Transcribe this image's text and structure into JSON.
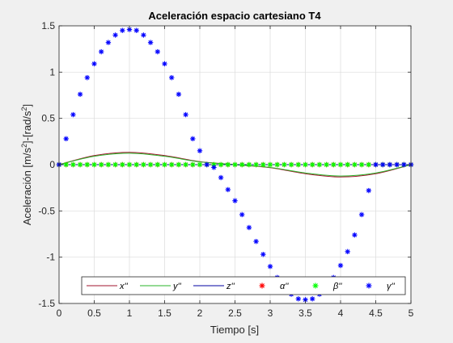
{
  "chart_data": {
    "type": "line",
    "title": "Aceleración espacio cartesiano T4",
    "xlabel": "Tiempo [s]",
    "ylabel_main": "Aceleración [m/s",
    "ylabel_mid": "]-[rad/s",
    "ylabel_end": "]",
    "ylabel_sup": "2",
    "xlim": [
      0,
      5
    ],
    "ylim": [
      -1.5,
      1.5
    ],
    "xticks": [
      0,
      0.5,
      1,
      1.5,
      2,
      2.5,
      3,
      3.5,
      4,
      4.5,
      5
    ],
    "xtick_labels": [
      "0",
      "0.5",
      "1",
      "1.5",
      "2",
      "2.5",
      "3",
      "3.5",
      "4",
      "4.5",
      "5"
    ],
    "yticks": [
      -1.5,
      -1,
      -0.5,
      0,
      0.5,
      1,
      1.5
    ],
    "ytick_labels": [
      "-1.5",
      "-1",
      "-0.5",
      "0",
      "0.5",
      "1",
      "1.5"
    ],
    "grid": true,
    "legend_position": "bottom",
    "series": [
      {
        "name": "x''",
        "style": "line",
        "color": "#a2142f",
        "x": [
          0,
          0.5,
          1,
          1.5,
          2,
          2.5,
          3,
          3.5,
          4,
          4.5,
          5
        ],
        "y": [
          0,
          0.098,
          0.133,
          0.098,
          0.033,
          0,
          -0.033,
          -0.098,
          -0.133,
          -0.098,
          0
        ]
      },
      {
        "name": "y''",
        "style": "line",
        "color": "#2ab52a",
        "x": [
          0,
          0.5,
          1,
          1.5,
          2,
          2.5,
          3,
          3.5,
          4,
          4.5,
          5
        ],
        "y": [
          0,
          0.09,
          0.123,
          0.09,
          0.03,
          0,
          -0.03,
          -0.09,
          -0.123,
          -0.09,
          0
        ]
      },
      {
        "name": "z''",
        "style": "line",
        "color": "#0000a0",
        "x": [
          0,
          5
        ],
        "y": [
          0,
          0
        ]
      },
      {
        "name": "α''",
        "style": "star",
        "color": "#ff0000",
        "x": [
          0,
          0.1,
          0.2,
          0.3,
          0.4,
          0.5,
          0.6,
          0.7,
          0.8,
          0.9,
          1,
          1.1,
          1.2,
          1.3,
          1.4,
          1.5,
          1.6,
          1.7,
          1.8,
          1.9,
          2,
          2.1,
          2.2,
          2.3,
          2.4,
          2.5,
          2.6,
          2.7,
          2.8,
          2.9,
          3,
          3.1,
          3.2,
          3.3,
          3.4,
          3.5,
          3.6,
          3.7,
          3.8,
          3.9,
          4,
          4.1,
          4.2,
          4.3,
          4.4,
          4.5,
          4.6,
          4.7,
          4.8,
          4.9,
          5
        ],
        "y": [
          0,
          0,
          0,
          0,
          0,
          0,
          0,
          0,
          0,
          0,
          0,
          0,
          0,
          0,
          0,
          0,
          0,
          0,
          0,
          0,
          0,
          0,
          0,
          0,
          0,
          0,
          0,
          0,
          0,
          0,
          0,
          0,
          0,
          0,
          0,
          0,
          0,
          0,
          0,
          0,
          0,
          0,
          0,
          0,
          0,
          0,
          0,
          0,
          0,
          0,
          0
        ]
      },
      {
        "name": "β''",
        "style": "star",
        "color": "#00ff00",
        "x": [
          0,
          0.1,
          0.2,
          0.3,
          0.4,
          0.5,
          0.6,
          0.7,
          0.8,
          0.9,
          1,
          1.1,
          1.2,
          1.3,
          1.4,
          1.5,
          1.6,
          1.7,
          1.8,
          1.9,
          2,
          2.1,
          2.2,
          2.3,
          2.4,
          2.5,
          2.6,
          2.7,
          2.8,
          2.9,
          3,
          3.1,
          3.2,
          3.3,
          3.4,
          3.5,
          3.6,
          3.7,
          3.8,
          3.9,
          4,
          4.1,
          4.2,
          4.3,
          4.4,
          4.5,
          4.6,
          4.7,
          4.8,
          4.9,
          5
        ],
        "y": [
          0,
          0,
          0,
          0,
          0,
          0,
          0,
          0,
          0,
          0,
          0,
          0,
          0,
          0,
          0,
          0,
          0,
          0,
          0,
          0,
          0,
          0,
          0,
          0,
          0,
          0,
          0,
          0,
          0,
          0,
          0,
          0,
          0,
          0,
          0,
          0,
          0,
          0,
          0,
          0,
          0,
          0,
          0,
          0,
          0,
          0,
          0,
          0,
          0,
          0,
          0
        ]
      },
      {
        "name": "γ''",
        "style": "star",
        "color": "#0000ff",
        "x": [
          0,
          0.1,
          0.2,
          0.3,
          0.4,
          0.5,
          0.6,
          0.7,
          0.8,
          0.9,
          1,
          1.1,
          1.2,
          1.3,
          1.4,
          1.5,
          1.6,
          1.7,
          1.8,
          1.9,
          2,
          2.1,
          2.2,
          2.3,
          2.4,
          2.5,
          2.6,
          2.7,
          2.8,
          2.9,
          3,
          3.1,
          3.2,
          3.3,
          3.4,
          3.5,
          3.6,
          3.7,
          3.8,
          3.9,
          4,
          4.1,
          4.2,
          4.3,
          4.4,
          4.5,
          4.6,
          4.7,
          4.8,
          4.9,
          5
        ],
        "y": [
          0,
          0.28,
          0.54,
          0.76,
          0.94,
          1.09,
          1.22,
          1.32,
          1.4,
          1.45,
          1.46,
          1.45,
          1.4,
          1.32,
          1.22,
          1.09,
          0.94,
          0.76,
          0.54,
          0.28,
          0.15,
          0.0,
          -0.03,
          -0.14,
          -0.27,
          -0.39,
          -0.54,
          -0.68,
          -0.83,
          -0.97,
          -1.1,
          -1.22,
          -1.32,
          -1.4,
          -1.45,
          -1.46,
          -1.45,
          -1.4,
          -1.32,
          -1.22,
          -1.09,
          -0.94,
          -0.76,
          -0.54,
          -0.28,
          0,
          0,
          0,
          0,
          0,
          0
        ]
      }
    ]
  }
}
